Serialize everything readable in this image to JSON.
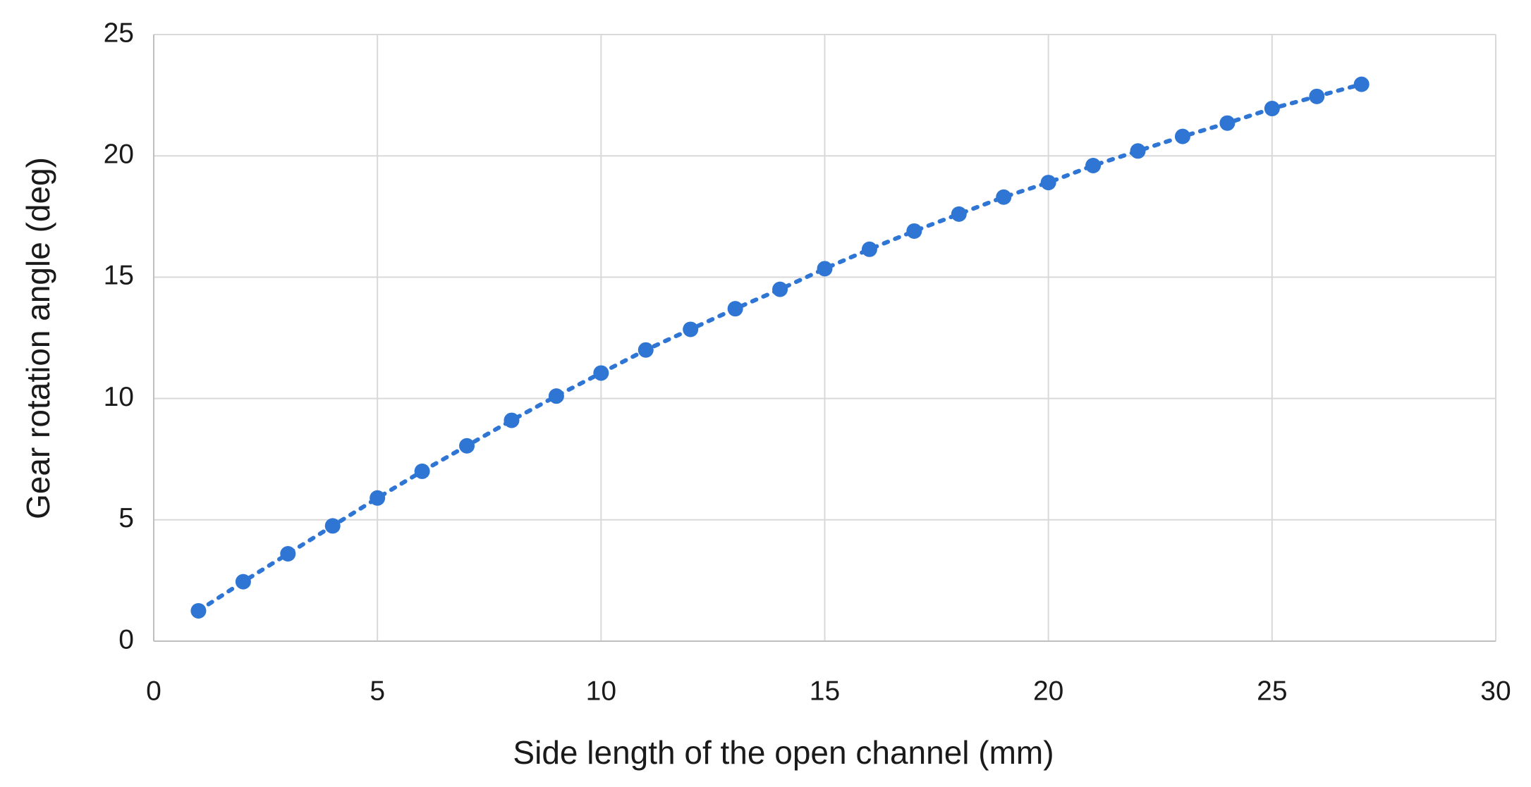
{
  "chart_data": {
    "type": "scatter",
    "x_label": "Side length of the open channel (mm)",
    "y_label": "Gear rotation angle (deg)",
    "x": [
      1,
      2,
      3,
      4,
      5,
      6,
      7,
      8,
      9,
      10,
      11,
      12,
      13,
      14,
      15,
      16,
      17,
      18,
      19,
      20,
      21,
      22,
      23,
      24,
      25,
      26,
      27
    ],
    "values": [
      1.25,
      2.45,
      3.6,
      4.75,
      5.9,
      7.0,
      8.05,
      9.1,
      10.1,
      11.05,
      12.0,
      12.85,
      13.7,
      14.5,
      15.35,
      16.15,
      16.9,
      17.6,
      18.3,
      18.9,
      19.6,
      20.2,
      20.8,
      21.35,
      21.95,
      22.45,
      22.95
    ],
    "color": "#2e75d4",
    "line_style": "dotted",
    "xlim": [
      0,
      30
    ],
    "xticks": [
      0,
      5,
      10,
      15,
      20,
      25,
      30
    ],
    "ylim": [
      0,
      25
    ],
    "yticks": [
      0,
      5,
      10,
      15,
      20,
      25
    ],
    "grid": true
  }
}
